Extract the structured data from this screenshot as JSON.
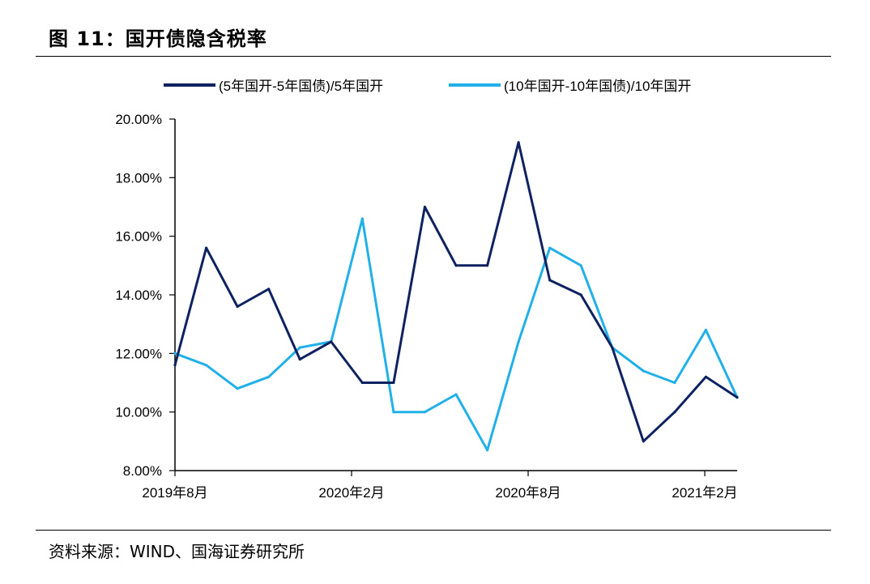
{
  "title": "图 11：国开债隐含税率",
  "source": "资料来源：WIND、国海证券研究所",
  "chart_data": {
    "type": "line",
    "title": "图 11：国开债隐含税率",
    "xlabel": "",
    "ylabel": "",
    "ylim": [
      0.08,
      0.2
    ],
    "y_ticks": [
      0.08,
      0.1,
      0.12,
      0.14,
      0.16,
      0.18,
      0.2
    ],
    "y_tick_labels": [
      "8.00%",
      "10.00%",
      "12.00%",
      "14.00%",
      "16.00%",
      "18.00%",
      "20.00%"
    ],
    "x_tick_labels": [
      "2019年8月",
      "2020年2月",
      "2020年8月",
      "2021年2月"
    ],
    "legend_position": "top",
    "x": [
      "2019-08",
      "2019-09",
      "2019-10",
      "2019-11",
      "2019-12",
      "2020-01",
      "2020-02",
      "2020-03",
      "2020-04",
      "2020-05",
      "2020-06",
      "2020-07",
      "2020-08",
      "2020-09",
      "2020-10",
      "2020-11",
      "2020-12",
      "2021-01",
      "2021-02"
    ],
    "series": [
      {
        "name": "(5年国开-5年国债)/5年国开",
        "color": "#0f2260",
        "values": [
          0.116,
          0.156,
          0.136,
          0.142,
          0.118,
          0.124,
          0.11,
          0.11,
          0.17,
          0.15,
          0.15,
          0.192,
          0.145,
          0.14,
          0.122,
          0.09,
          0.1,
          0.112,
          0.105
        ]
      },
      {
        "name": "(10年国开-10年国债)/10年国开",
        "color": "#22b0e8",
        "values": [
          0.12,
          0.116,
          0.108,
          0.112,
          0.122,
          0.124,
          0.166,
          0.1,
          0.1,
          0.106,
          0.087,
          0.124,
          0.156,
          0.15,
          0.122,
          0.114,
          0.11,
          0.128,
          0.105
        ]
      }
    ]
  }
}
